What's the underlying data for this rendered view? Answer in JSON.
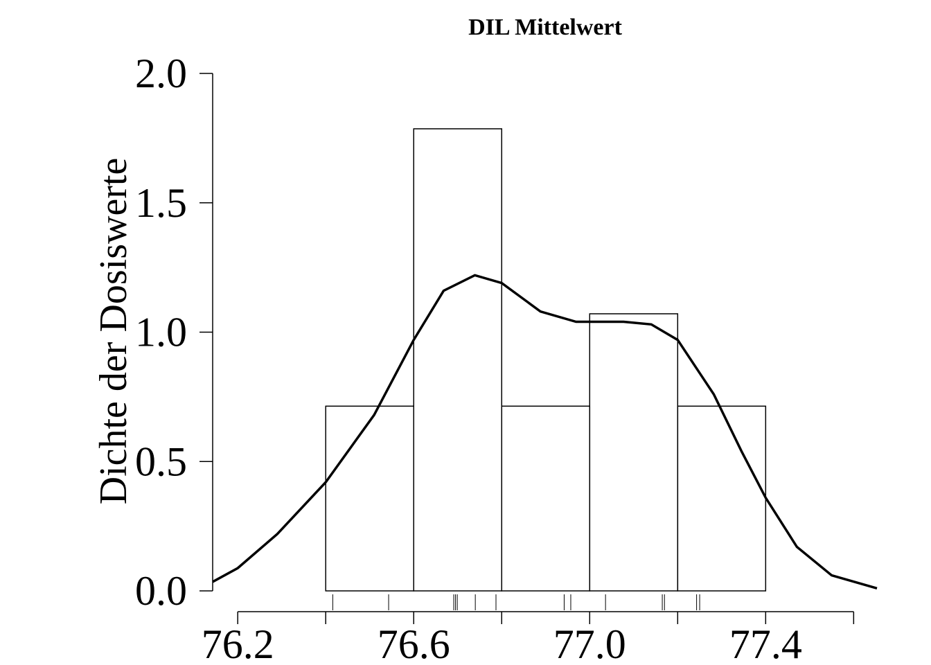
{
  "chart_data": {
    "type": "histogram",
    "title": "DIL Mittelwert",
    "ylabel": "Dichte der Dosiswerte",
    "bins": [
      76.4,
      76.6,
      76.8,
      77.0,
      77.2,
      77.4
    ],
    "values": [
      0.714,
      1.786,
      0.714,
      1.071,
      0.714
    ],
    "color": "#000000",
    "density": {
      "x": [
        76.143,
        76.2,
        76.29,
        76.4,
        76.51,
        76.6,
        76.668,
        76.739,
        76.8,
        76.888,
        76.969,
        77.077,
        77.14,
        77.2,
        77.282,
        77.345,
        77.4,
        77.471,
        77.55,
        77.653
      ],
      "y": [
        0.035,
        0.088,
        0.22,
        0.42,
        0.68,
        0.97,
        1.16,
        1.22,
        1.19,
        1.08,
        1.04,
        1.04,
        1.03,
        0.97,
        0.76,
        0.54,
        0.36,
        0.17,
        0.06,
        0.01
      ]
    },
    "rug": [
      76.416,
      76.543,
      76.691,
      76.695,
      76.699,
      76.74,
      76.787,
      76.942,
      76.957,
      77.036,
      77.165,
      77.17,
      77.243,
      77.25
    ],
    "xlim": [
      76.143,
      77.653
    ],
    "xticks": [
      76.2,
      76.6,
      {
        "value": 77.0,
        "label": "77.0"
      },
      77.4
    ],
    "xminorticks": [
      76.4,
      76.8,
      77.2,
      77.6
    ],
    "ylim": [
      0,
      2
    ],
    "yticks": [
      {
        "value": 0,
        "label": "0.0"
      },
      0.5,
      {
        "value": 1,
        "label": "1.0"
      },
      1.5,
      {
        "value": 2,
        "label": "2.0"
      }
    ]
  }
}
